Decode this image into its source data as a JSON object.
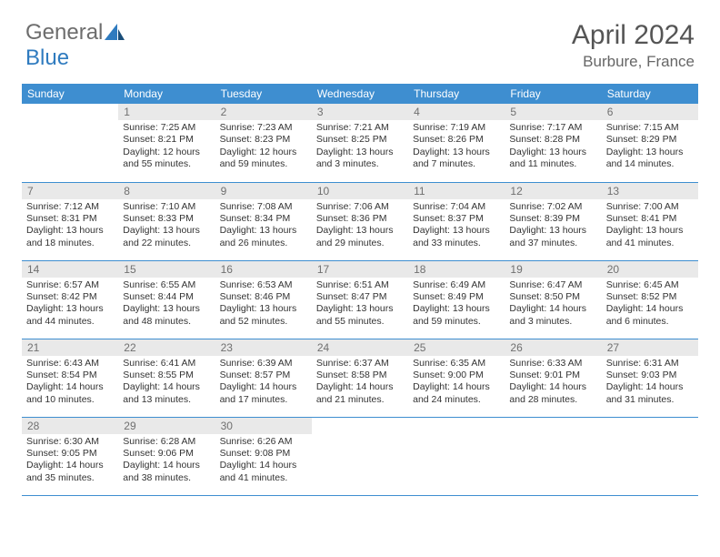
{
  "brand": {
    "part1": "General",
    "part2": "Blue"
  },
  "title": "April 2024",
  "location": "Burbure, France",
  "colors": {
    "header_bg": "#3e8ed0",
    "daynum_bg": "#e9e9e9",
    "border": "#3e8ed0"
  },
  "weekdays": [
    "Sunday",
    "Monday",
    "Tuesday",
    "Wednesday",
    "Thursday",
    "Friday",
    "Saturday"
  ],
  "first_weekday_index": 1,
  "days": [
    {
      "n": 1,
      "sr": "7:25 AM",
      "ss": "8:21 PM",
      "dl": "12 hours and 55 minutes."
    },
    {
      "n": 2,
      "sr": "7:23 AM",
      "ss": "8:23 PM",
      "dl": "12 hours and 59 minutes."
    },
    {
      "n": 3,
      "sr": "7:21 AM",
      "ss": "8:25 PM",
      "dl": "13 hours and 3 minutes."
    },
    {
      "n": 4,
      "sr": "7:19 AM",
      "ss": "8:26 PM",
      "dl": "13 hours and 7 minutes."
    },
    {
      "n": 5,
      "sr": "7:17 AM",
      "ss": "8:28 PM",
      "dl": "13 hours and 11 minutes."
    },
    {
      "n": 6,
      "sr": "7:15 AM",
      "ss": "8:29 PM",
      "dl": "13 hours and 14 minutes."
    },
    {
      "n": 7,
      "sr": "7:12 AM",
      "ss": "8:31 PM",
      "dl": "13 hours and 18 minutes."
    },
    {
      "n": 8,
      "sr": "7:10 AM",
      "ss": "8:33 PM",
      "dl": "13 hours and 22 minutes."
    },
    {
      "n": 9,
      "sr": "7:08 AM",
      "ss": "8:34 PM",
      "dl": "13 hours and 26 minutes."
    },
    {
      "n": 10,
      "sr": "7:06 AM",
      "ss": "8:36 PM",
      "dl": "13 hours and 29 minutes."
    },
    {
      "n": 11,
      "sr": "7:04 AM",
      "ss": "8:37 PM",
      "dl": "13 hours and 33 minutes."
    },
    {
      "n": 12,
      "sr": "7:02 AM",
      "ss": "8:39 PM",
      "dl": "13 hours and 37 minutes."
    },
    {
      "n": 13,
      "sr": "7:00 AM",
      "ss": "8:41 PM",
      "dl": "13 hours and 41 minutes."
    },
    {
      "n": 14,
      "sr": "6:57 AM",
      "ss": "8:42 PM",
      "dl": "13 hours and 44 minutes."
    },
    {
      "n": 15,
      "sr": "6:55 AM",
      "ss": "8:44 PM",
      "dl": "13 hours and 48 minutes."
    },
    {
      "n": 16,
      "sr": "6:53 AM",
      "ss": "8:46 PM",
      "dl": "13 hours and 52 minutes."
    },
    {
      "n": 17,
      "sr": "6:51 AM",
      "ss": "8:47 PM",
      "dl": "13 hours and 55 minutes."
    },
    {
      "n": 18,
      "sr": "6:49 AM",
      "ss": "8:49 PM",
      "dl": "13 hours and 59 minutes."
    },
    {
      "n": 19,
      "sr": "6:47 AM",
      "ss": "8:50 PM",
      "dl": "14 hours and 3 minutes."
    },
    {
      "n": 20,
      "sr": "6:45 AM",
      "ss": "8:52 PM",
      "dl": "14 hours and 6 minutes."
    },
    {
      "n": 21,
      "sr": "6:43 AM",
      "ss": "8:54 PM",
      "dl": "14 hours and 10 minutes."
    },
    {
      "n": 22,
      "sr": "6:41 AM",
      "ss": "8:55 PM",
      "dl": "14 hours and 13 minutes."
    },
    {
      "n": 23,
      "sr": "6:39 AM",
      "ss": "8:57 PM",
      "dl": "14 hours and 17 minutes."
    },
    {
      "n": 24,
      "sr": "6:37 AM",
      "ss": "8:58 PM",
      "dl": "14 hours and 21 minutes."
    },
    {
      "n": 25,
      "sr": "6:35 AM",
      "ss": "9:00 PM",
      "dl": "14 hours and 24 minutes."
    },
    {
      "n": 26,
      "sr": "6:33 AM",
      "ss": "9:01 PM",
      "dl": "14 hours and 28 minutes."
    },
    {
      "n": 27,
      "sr": "6:31 AM",
      "ss": "9:03 PM",
      "dl": "14 hours and 31 minutes."
    },
    {
      "n": 28,
      "sr": "6:30 AM",
      "ss": "9:05 PM",
      "dl": "14 hours and 35 minutes."
    },
    {
      "n": 29,
      "sr": "6:28 AM",
      "ss": "9:06 PM",
      "dl": "14 hours and 38 minutes."
    },
    {
      "n": 30,
      "sr": "6:26 AM",
      "ss": "9:08 PM",
      "dl": "14 hours and 41 minutes."
    }
  ],
  "labels": {
    "sunrise": "Sunrise:",
    "sunset": "Sunset:",
    "daylight": "Daylight:"
  }
}
